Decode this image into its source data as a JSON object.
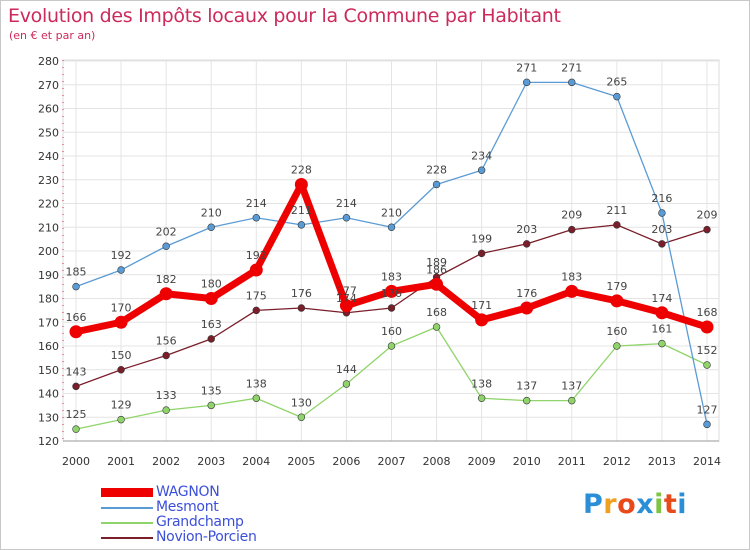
{
  "header": {
    "title": "Evolution des Impôts locaux pour la Commune par Habitant",
    "subtitle": "(en € et par an)"
  },
  "brand": {
    "name": "Proxiti",
    "colors": [
      "#2a8fd6",
      "#f0a020",
      "#e84a1a",
      "#2a8fd6",
      "#7cc441",
      "#e84a1a",
      "#2a8fd6"
    ]
  },
  "chart_data": {
    "type": "line",
    "x": [
      "2000",
      "2001",
      "2002",
      "2003",
      "2004",
      "2005",
      "2006",
      "2007",
      "2008",
      "2009",
      "2010",
      "2011",
      "2012",
      "2013",
      "2014"
    ],
    "ylim": [
      120,
      280
    ],
    "yticks": [
      120,
      130,
      140,
      150,
      160,
      170,
      180,
      190,
      200,
      210,
      220,
      230,
      240,
      250,
      260,
      270,
      280
    ],
    "grid": true,
    "legend_position": "bottom-left",
    "series": [
      {
        "name": "WAGNON",
        "color": "#ee0000",
        "values": [
          166,
          170,
          182,
          180,
          192,
          228,
          177,
          183,
          186,
          171,
          176,
          183,
          179,
          174,
          168
        ]
      },
      {
        "name": "Mesmont",
        "color": "#5b9bd5",
        "values": [
          185,
          192,
          202,
          210,
          214,
          211,
          214,
          210,
          228,
          234,
          271,
          271,
          265,
          216,
          127
        ]
      },
      {
        "name": "Grandchamp",
        "color": "#8fd46a",
        "values": [
          125,
          129,
          133,
          135,
          138,
          130,
          144,
          160,
          168,
          138,
          137,
          137,
          160,
          161,
          152
        ]
      },
      {
        "name": "Novion-Porcien",
        "color": "#7a1e2a",
        "values": [
          143,
          150,
          156,
          163,
          175,
          176,
          174,
          176,
          189,
          199,
          203,
          209,
          211,
          203,
          209
        ]
      }
    ],
    "labels": [
      [
        "166",
        "170",
        "182",
        "180",
        "192",
        "228",
        "177",
        "183",
        "186",
        "171",
        "176",
        "183",
        "179",
        "174",
        "168"
      ],
      [
        "185",
        "192",
        "202",
        "210",
        "214",
        "211",
        "214",
        "210",
        "228",
        "234",
        "271",
        "271",
        "265",
        "216",
        "127"
      ],
      [
        "125",
        "129",
        "133",
        "135",
        "138",
        "130",
        "144",
        "160",
        "168",
        "138",
        "137",
        "137",
        "160",
        "161",
        "152"
      ],
      [
        "143",
        "150",
        "156",
        "163",
        "175",
        "176",
        "174",
        "176",
        "189",
        "199",
        "203",
        "209",
        "211",
        "203",
        "209"
      ]
    ]
  }
}
